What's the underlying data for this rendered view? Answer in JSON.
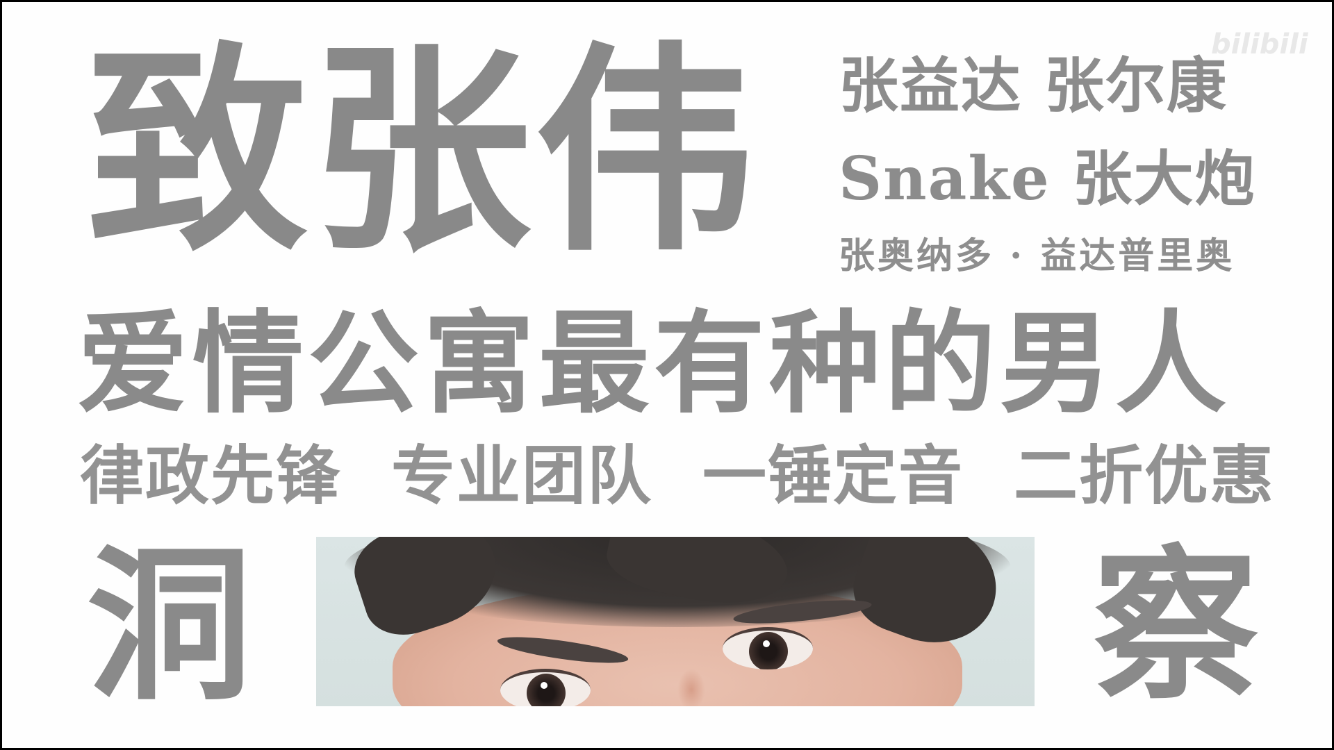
{
  "watermark": "bilibili",
  "title": "致张伟",
  "names": {
    "line1": "张益达 张尔康",
    "line2": "Snake 张大炮",
    "line3": "张奥纳多 · 益达普里奥"
  },
  "headline": "爱情公寓最有种的男人",
  "slogans": [
    "律政先锋",
    "专业团队",
    "一锤定音",
    "二折优惠"
  ],
  "bottom": {
    "left_char": "洞",
    "right_char": "察"
  },
  "colors": {
    "text": "#8a8a8a",
    "background": "#fefefe",
    "frame": "#000000"
  }
}
